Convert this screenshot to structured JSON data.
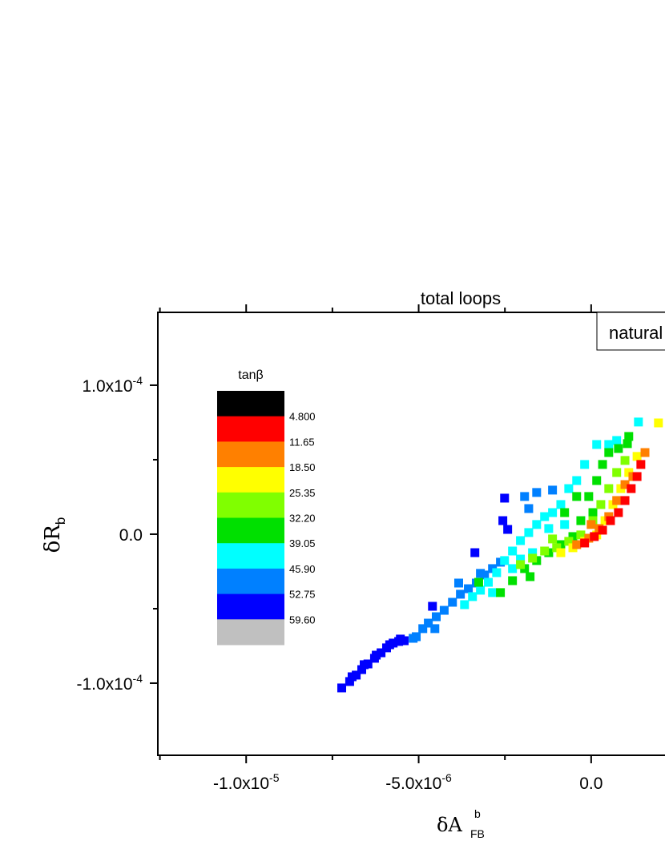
{
  "chart_data": {
    "type": "scatter",
    "title": "total loops",
    "annotation": "natural",
    "xlabel": "δA",
    "xlabel_sub": "FB",
    "xlabel_sup": "b",
    "ylabel": "δR",
    "ylabel_sub": "b",
    "xlim": [
      -1.256e-05,
      2.14e-06
    ],
    "ylim": [
      -0.0001484,
      0.0001489
    ],
    "xticks": [
      {
        "value": -1e-05,
        "label": "-1.0x10",
        "exp": "-5"
      },
      {
        "value": -5e-06,
        "label": "-5.0x10",
        "exp": "-6"
      },
      {
        "value": 0,
        "label": "0.0"
      }
    ],
    "xminor": [
      -1.25e-05,
      -7.5e-06,
      -2.5e-06
    ],
    "yticks": [
      {
        "value": 0.0001,
        "label": "1.0x10",
        "exp": "-4"
      },
      {
        "value": 0,
        "label": "0.0"
      },
      {
        "value": -0.0001,
        "label": "-1.0x10",
        "exp": "-4"
      }
    ],
    "yminor": [
      5e-05,
      -5e-05
    ],
    "colorbar": {
      "title": "tanβ",
      "levels": [
        {
          "value": 4.8,
          "label": "4.800"
        },
        11.65,
        {
          "value": 18.5,
          "label": "18.50"
        },
        25.35,
        {
          "value": 32.2,
          "label": "32.20"
        },
        39.05,
        {
          "value": 45.9,
          "label": "45.90"
        },
        52.75,
        {
          "value": 59.6,
          "label": "59.60"
        }
      ],
      "colors": [
        "#000000",
        "#ff0000",
        "#ff8000",
        "#ffff00",
        "#80ff00",
        "#00e000",
        "#00ffff",
        "#0080ff",
        "#0000ff",
        "#c0c0c0"
      ]
    },
    "points": {
      "x": [
        -7.23e-06,
        -7e-06,
        -6.93e-06,
        -6.81e-06,
        -6.65e-06,
        -6.58e-06,
        -6.47e-06,
        -6.28e-06,
        -6.23e-06,
        -6.09e-06,
        -5.93e-06,
        -5.84e-06,
        -5.74e-06,
        -5.58e-06,
        -5.53e-06,
        -5.42e-06,
        -4.6e-06,
        -3.37e-06,
        -2.56e-06,
        -2.51e-06,
        -2.42e-06,
        -5.16e-06,
        -5.07e-06,
        -4.88e-06,
        -4.72e-06,
        -4.53e-06,
        -4.49e-06,
        -4.26e-06,
        -4.02e-06,
        -3.79e-06,
        -3.84e-06,
        -3.56e-06,
        -3.33e-06,
        -3.21e-06,
        -3.09e-06,
        -2.86e-06,
        -2.63e-06,
        -1.93e-06,
        -1.81e-06,
        -1.58e-06,
        -1.12e-06,
        -3.67e-06,
        -3.44e-06,
        -3.21e-06,
        -2.98e-06,
        -2.86e-06,
        -2.74e-06,
        -2.51e-06,
        -2.28e-06,
        -2.28e-06,
        -2.05e-06,
        -2.05e-06,
        -1.81e-06,
        -1.7e-06,
        -1.58e-06,
        -1.35e-06,
        -1.23e-06,
        -1.12e-06,
        -8.8e-07,
        -7.7e-07,
        -6.5e-07,
        -4.2e-07,
        -1.9e-07,
        1.6e-07,
        5.1e-07,
        7.4e-07,
        1.37e-06,
        -3.26e-06,
        -2.63e-06,
        -2.28e-06,
        -1.93e-06,
        -1.77e-06,
        -1.58e-06,
        -1.23e-06,
        -8.8e-07,
        -7.7e-07,
        -5.3e-07,
        -4.2e-07,
        -3e-07,
        -7e-08,
        5e-08,
        1.6e-07,
        3.3e-07,
        5.1e-07,
        7.9e-07,
        1.05e-06,
        1.09e-06,
        -2.05e-06,
        -1.7e-06,
        -1.35e-06,
        -1.12e-06,
        -1e-06,
        -6.5e-07,
        -3e-07,
        5e-08,
        2.8e-07,
        5.1e-07,
        7.4e-07,
        9.8e-07,
        -8.8e-07,
        -5.3e-07,
        -1.9e-07,
        1.6e-07,
        4e-07,
        6.3e-07,
        8.6e-07,
        1.09e-06,
        1.33e-06,
        1.95e-06,
        -4.2e-07,
        -7e-08,
        0,
        2.3e-07,
        5.1e-07,
        7.4e-07,
        9.8e-07,
        1.21e-06,
        1.56e-06,
        -1.9e-07,
        9e-08,
        3.3e-07,
        5.6e-07,
        7.9e-07,
        9.8e-07,
        1.16e-06,
        1.33e-06,
        1.44e-06
      ],
      "y": [
        -0.0001032,
        -9.89e-05,
        -9.57e-05,
        -9.46e-05,
        -9.09e-05,
        -8.76e-05,
        -8.71e-05,
        -8.33e-05,
        -8.12e-05,
        -7.96e-05,
        -7.63e-05,
        -7.42e-05,
        -7.31e-05,
        -7.2e-05,
        -7.04e-05,
        -7.15e-05,
        -4.84e-05,
        -1.24e-05,
        9.1e-06,
        2.42e-05,
        3.2e-06,
        -6.99e-05,
        -6.88e-05,
        -6.34e-05,
        -5.97e-05,
        -6.34e-05,
        -5.54e-05,
        -5.11e-05,
        -4.57e-05,
        -4.03e-05,
        -3.28e-05,
        -3.66e-05,
        -3.28e-05,
        -2.63e-05,
        -2.74e-05,
        -2.31e-05,
        -1.88e-05,
        2.53e-05,
        1.72e-05,
        2.8e-05,
        2.96e-05,
        -4.73e-05,
        -4.19e-05,
        -3.76e-05,
        -3.23e-05,
        -3.92e-05,
        -2.58e-05,
        -1.77e-05,
        -1.13e-05,
        -2.31e-05,
        -4.3e-06,
        -1.67e-05,
        1.1e-06,
        -1.24e-05,
        6.5e-06,
        1.18e-05,
        3.8e-06,
        1.45e-05,
        1.99e-05,
        6.5e-06,
        3.06e-05,
        3.6e-05,
        4.68e-05,
        6.02e-05,
        6.02e-05,
        6.29e-05,
        7.53e-05,
        -3.23e-05,
        -3.92e-05,
        -3.12e-05,
        -2.31e-05,
        -2.85e-05,
        -1.77e-05,
        -1.24e-05,
        -7e-06,
        1.45e-05,
        -1.6e-06,
        2.53e-05,
        9.1e-06,
        2.53e-05,
        1.45e-05,
        3.6e-05,
        4.68e-05,
        5.48e-05,
        5.75e-05,
        6.08e-05,
        6.56e-05,
        -2.04e-05,
        -1.61e-05,
        -1.13e-05,
        -3.2e-06,
        -9.1e-06,
        -4.8e-06,
        -5e-07,
        9.1e-06,
        1.99e-05,
        3.06e-05,
        4.14e-05,
        4.95e-05,
        -1.24e-05,
        -9.1e-06,
        -4.8e-06,
        -5e-07,
        9.1e-06,
        1.99e-05,
        3.06e-05,
        4.14e-05,
        5.22e-05,
        7.47e-05,
        -7e-06,
        -2.7e-06,
        6.5e-06,
        3.8e-06,
        1.18e-05,
        2.26e-05,
        3.33e-05,
        3.87e-05,
        5.48e-05,
        -5.9e-06,
        -1.6e-06,
        2.7e-06,
        9.1e-06,
        1.45e-05,
        2.26e-05,
        3.06e-05,
        3.87e-05,
        4.68e-05
      ],
      "z": [
        56,
        56,
        56,
        56,
        56,
        56,
        56,
        56,
        56,
        56,
        56,
        56,
        56,
        56,
        56,
        56,
        56,
        56,
        56,
        56,
        56,
        49,
        49,
        49,
        49,
        49,
        49,
        49,
        49,
        49,
        49,
        49,
        49,
        49,
        49,
        49,
        49,
        49,
        49,
        49,
        49,
        42,
        42,
        42,
        42,
        42,
        42,
        42,
        42,
        42,
        42,
        42,
        42,
        42,
        42,
        42,
        42,
        42,
        42,
        42,
        42,
        42,
        42,
        42,
        42,
        42,
        42,
        36,
        36,
        36,
        36,
        36,
        36,
        36,
        36,
        36,
        36,
        36,
        36,
        36,
        36,
        36,
        36,
        36,
        36,
        36,
        36,
        29,
        29,
        29,
        29,
        29,
        29,
        29,
        29,
        29,
        29,
        29,
        29,
        22,
        22,
        22,
        22,
        22,
        22,
        22,
        22,
        22,
        22,
        15,
        15,
        15,
        15,
        15,
        15,
        15,
        15,
        15,
        8,
        8,
        8,
        8,
        8,
        8,
        8,
        8,
        8
      ]
    }
  }
}
